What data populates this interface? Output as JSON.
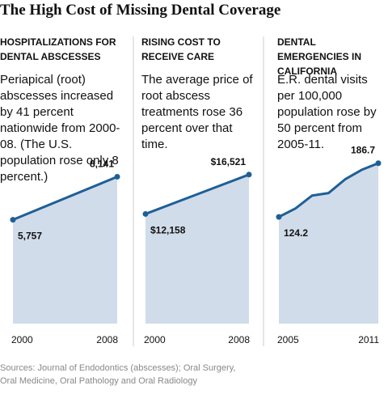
{
  "title": "The High Cost of Missing Dental Coverage",
  "source": "Sources: Journal of Endodontics (abscesses); Oral Surgery, Oral Medicine, Oral Pathology and Oral Radiology",
  "chart_data": [
    {
      "type": "line",
      "title": "HOSPITALIZATIONS FOR DENTAL ABSCESSES",
      "description": "Periapical (root) abscesses increased by 41 percent nationwide from 2000-08. (The U.S. population rose only 8 percent.)",
      "x": [
        2000,
        2008
      ],
      "values": [
        5757,
        8141
      ],
      "value_labels": [
        "5,757",
        "8,141"
      ],
      "xlim": [
        2000,
        2008
      ],
      "xticks": [
        2000,
        2008
      ],
      "ylim": [
        0,
        10000
      ],
      "color": "#1f5f96",
      "fill_color": "#d1dcea"
    },
    {
      "type": "line",
      "title": "RISING COST TO RECEIVE CARE",
      "description": "The average price of root abscess treatments rose 36 percent over that time.",
      "x": [
        2000,
        2008
      ],
      "values": [
        12158,
        16521
      ],
      "value_labels": [
        "$12,158",
        "$16,521"
      ],
      "xlim": [
        2000,
        2008
      ],
      "xticks": [
        2000,
        2008
      ],
      "ylim": [
        0,
        20000
      ],
      "color": "#1f5f96",
      "fill_color": "#d1dcea"
    },
    {
      "type": "line",
      "title": "DENTAL EMERGENCIES IN CALIFORNIA",
      "description": "E.R. dental visits per 100,000 population rose by 50 percent from 2005-11.",
      "x": [
        2005,
        2006,
        2007,
        2008,
        2009,
        2010,
        2011
      ],
      "values": [
        124.2,
        134,
        149,
        152,
        168,
        179,
        186.7
      ],
      "value_labels": [
        "124.2",
        null,
        null,
        null,
        null,
        null,
        "186.7"
      ],
      "xlim": [
        2005,
        2011
      ],
      "xticks": [
        2005,
        2011
      ],
      "ylim": [
        0,
        210
      ],
      "color": "#1f5f96",
      "fill_color": "#d1dcea"
    }
  ]
}
